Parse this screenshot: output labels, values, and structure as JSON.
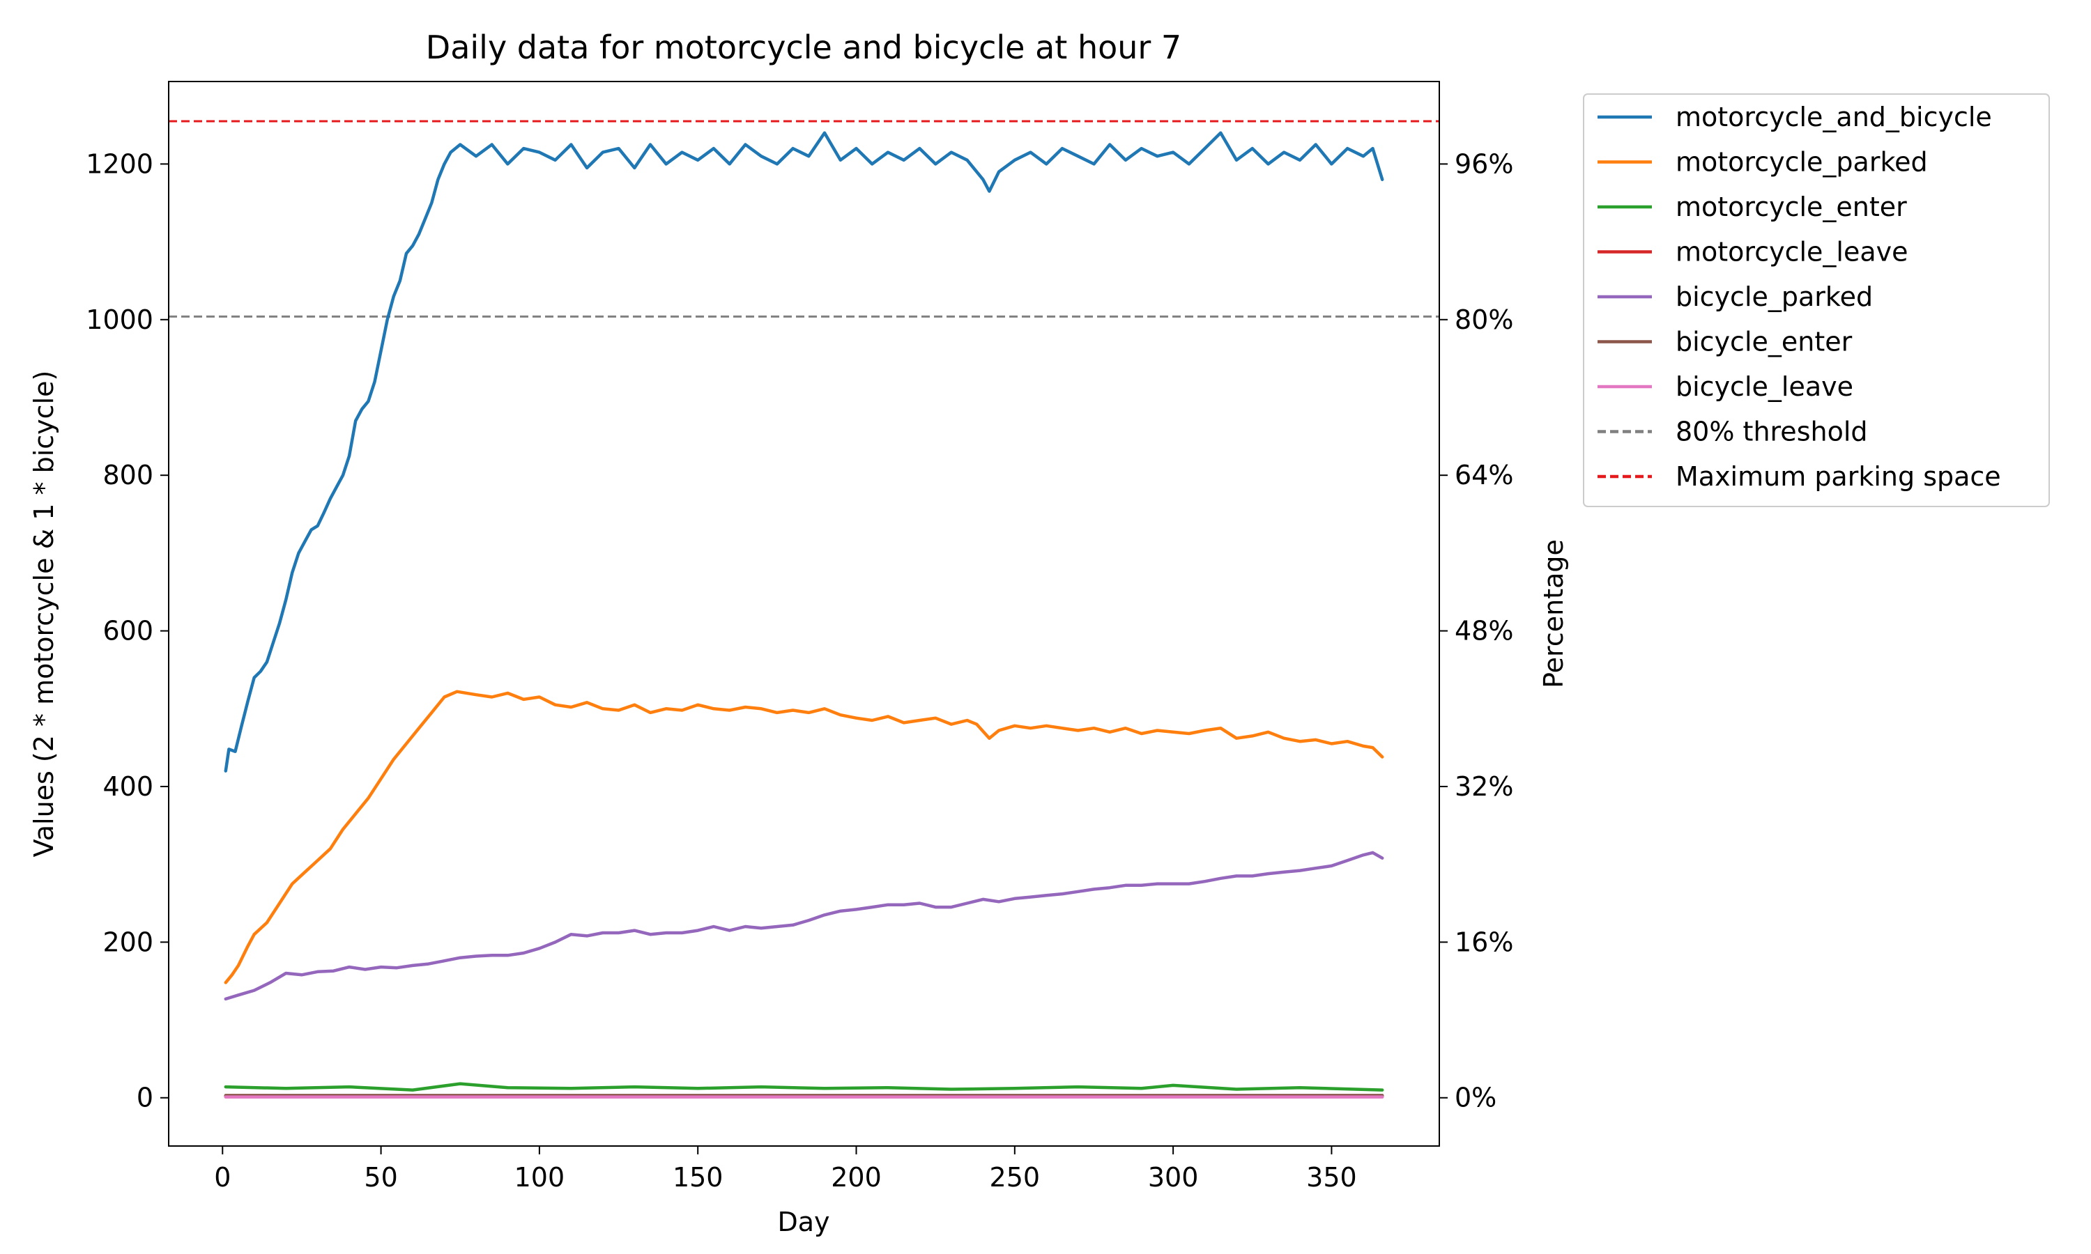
{
  "chart_data": {
    "type": "line",
    "title": "Daily data for motorcycle and bicycle at hour 7",
    "xlabel": "Day",
    "ylabel": "Values (2 * motorcycle & 1 * bicycle)",
    "y2label": "Percentage",
    "xlim": [
      -17,
      384
    ],
    "ylim": [
      -62,
      1306
    ],
    "xticks": [
      0,
      50,
      100,
      150,
      200,
      250,
      300,
      350
    ],
    "yticks": [
      0,
      200,
      400,
      600,
      800,
      1000,
      1200
    ],
    "y2ticks": [
      {
        "value": 0,
        "label": "0%"
      },
      {
        "value": 200,
        "label": "16%"
      },
      {
        "value": 400,
        "label": "32%"
      },
      {
        "value": 600,
        "label": "48%"
      },
      {
        "value": 800,
        "label": "64%"
      },
      {
        "value": 1000,
        "label": "80%"
      },
      {
        "value": 1200,
        "label": "96%"
      }
    ],
    "grid": false,
    "legend_position": "outside-right-top",
    "reference_lines": [
      {
        "name": "80% threshold",
        "value": 1004,
        "color": "#808080",
        "style": "dashed"
      },
      {
        "name": "Maximum parking space",
        "value": 1255,
        "color": "#e41a1c",
        "style": "dashed"
      }
    ],
    "series": [
      {
        "name": "motorcycle_and_bicycle",
        "color": "#1f77b4",
        "points": [
          [
            1,
            420
          ],
          [
            2,
            448
          ],
          [
            4,
            445
          ],
          [
            6,
            478
          ],
          [
            8,
            510
          ],
          [
            10,
            540
          ],
          [
            12,
            548
          ],
          [
            14,
            560
          ],
          [
            16,
            585
          ],
          [
            18,
            610
          ],
          [
            20,
            640
          ],
          [
            22,
            675
          ],
          [
            24,
            700
          ],
          [
            26,
            715
          ],
          [
            28,
            730
          ],
          [
            30,
            735
          ],
          [
            32,
            752
          ],
          [
            34,
            770
          ],
          [
            36,
            785
          ],
          [
            38,
            800
          ],
          [
            40,
            825
          ],
          [
            42,
            870
          ],
          [
            44,
            885
          ],
          [
            46,
            895
          ],
          [
            48,
            920
          ],
          [
            50,
            960
          ],
          [
            52,
            1000
          ],
          [
            54,
            1030
          ],
          [
            56,
            1050
          ],
          [
            58,
            1085
          ],
          [
            60,
            1095
          ],
          [
            62,
            1110
          ],
          [
            64,
            1130
          ],
          [
            66,
            1150
          ],
          [
            68,
            1180
          ],
          [
            70,
            1200
          ],
          [
            72,
            1215
          ],
          [
            75,
            1225
          ],
          [
            80,
            1210
          ],
          [
            85,
            1225
          ],
          [
            90,
            1200
          ],
          [
            95,
            1220
          ],
          [
            100,
            1215
          ],
          [
            105,
            1205
          ],
          [
            110,
            1225
          ],
          [
            115,
            1195
          ],
          [
            120,
            1215
          ],
          [
            125,
            1220
          ],
          [
            130,
            1195
          ],
          [
            135,
            1225
          ],
          [
            140,
            1200
          ],
          [
            145,
            1215
          ],
          [
            150,
            1205
          ],
          [
            155,
            1220
          ],
          [
            160,
            1200
          ],
          [
            165,
            1225
          ],
          [
            170,
            1210
          ],
          [
            175,
            1200
          ],
          [
            180,
            1220
          ],
          [
            185,
            1210
          ],
          [
            190,
            1240
          ],
          [
            195,
            1205
          ],
          [
            200,
            1220
          ],
          [
            205,
            1200
          ],
          [
            210,
            1215
          ],
          [
            215,
            1205
          ],
          [
            220,
            1220
          ],
          [
            225,
            1200
          ],
          [
            230,
            1215
          ],
          [
            235,
            1205
          ],
          [
            240,
            1180
          ],
          [
            242,
            1165
          ],
          [
            245,
            1190
          ],
          [
            250,
            1205
          ],
          [
            255,
            1215
          ],
          [
            260,
            1200
          ],
          [
            265,
            1220
          ],
          [
            270,
            1210
          ],
          [
            275,
            1200
          ],
          [
            280,
            1225
          ],
          [
            285,
            1205
          ],
          [
            290,
            1220
          ],
          [
            295,
            1210
          ],
          [
            300,
            1215
          ],
          [
            305,
            1200
          ],
          [
            310,
            1220
          ],
          [
            315,
            1240
          ],
          [
            320,
            1205
          ],
          [
            325,
            1220
          ],
          [
            330,
            1200
          ],
          [
            335,
            1215
          ],
          [
            340,
            1205
          ],
          [
            345,
            1225
          ],
          [
            350,
            1200
          ],
          [
            355,
            1220
          ],
          [
            360,
            1210
          ],
          [
            363,
            1220
          ],
          [
            366,
            1180
          ]
        ]
      },
      {
        "name": "motorcycle_parked",
        "color": "#ff7f0e",
        "points": [
          [
            1,
            148
          ],
          [
            3,
            158
          ],
          [
            5,
            170
          ],
          [
            8,
            195
          ],
          [
            10,
            210
          ],
          [
            14,
            225
          ],
          [
            18,
            250
          ],
          [
            22,
            275
          ],
          [
            26,
            290
          ],
          [
            30,
            305
          ],
          [
            34,
            320
          ],
          [
            38,
            345
          ],
          [
            42,
            365
          ],
          [
            46,
            385
          ],
          [
            50,
            410
          ],
          [
            54,
            435
          ],
          [
            58,
            455
          ],
          [
            62,
            475
          ],
          [
            66,
            495
          ],
          [
            70,
            515
          ],
          [
            74,
            522
          ],
          [
            80,
            518
          ],
          [
            85,
            515
          ],
          [
            90,
            520
          ],
          [
            95,
            512
          ],
          [
            100,
            515
          ],
          [
            105,
            505
          ],
          [
            110,
            502
          ],
          [
            115,
            508
          ],
          [
            120,
            500
          ],
          [
            125,
            498
          ],
          [
            130,
            505
          ],
          [
            135,
            495
          ],
          [
            140,
            500
          ],
          [
            145,
            498
          ],
          [
            150,
            505
          ],
          [
            155,
            500
          ],
          [
            160,
            498
          ],
          [
            165,
            502
          ],
          [
            170,
            500
          ],
          [
            175,
            495
          ],
          [
            180,
            498
          ],
          [
            185,
            495
          ],
          [
            190,
            500
          ],
          [
            195,
            492
          ],
          [
            200,
            488
          ],
          [
            205,
            485
          ],
          [
            210,
            490
          ],
          [
            215,
            482
          ],
          [
            220,
            485
          ],
          [
            225,
            488
          ],
          [
            230,
            480
          ],
          [
            235,
            485
          ],
          [
            238,
            480
          ],
          [
            242,
            462
          ],
          [
            245,
            472
          ],
          [
            250,
            478
          ],
          [
            255,
            475
          ],
          [
            260,
            478
          ],
          [
            265,
            475
          ],
          [
            270,
            472
          ],
          [
            275,
            475
          ],
          [
            280,
            470
          ],
          [
            285,
            475
          ],
          [
            290,
            468
          ],
          [
            295,
            472
          ],
          [
            300,
            470
          ],
          [
            305,
            468
          ],
          [
            310,
            472
          ],
          [
            315,
            475
          ],
          [
            320,
            462
          ],
          [
            325,
            465
          ],
          [
            330,
            470
          ],
          [
            335,
            462
          ],
          [
            340,
            458
          ],
          [
            345,
            460
          ],
          [
            350,
            455
          ],
          [
            355,
            458
          ],
          [
            360,
            452
          ],
          [
            363,
            450
          ],
          [
            366,
            438
          ]
        ]
      },
      {
        "name": "motorcycle_enter",
        "color": "#2ca02c",
        "points": [
          [
            1,
            14
          ],
          [
            20,
            12
          ],
          [
            40,
            14
          ],
          [
            60,
            10
          ],
          [
            75,
            18
          ],
          [
            90,
            13
          ],
          [
            110,
            12
          ],
          [
            130,
            14
          ],
          [
            150,
            12
          ],
          [
            170,
            14
          ],
          [
            190,
            12
          ],
          [
            210,
            13
          ],
          [
            230,
            11
          ],
          [
            250,
            12
          ],
          [
            270,
            14
          ],
          [
            290,
            12
          ],
          [
            300,
            16
          ],
          [
            320,
            11
          ],
          [
            340,
            13
          ],
          [
            366,
            10
          ]
        ]
      },
      {
        "name": "motorcycle_leave",
        "color": "#d62728",
        "points": [
          [
            1,
            2
          ],
          [
            366,
            2
          ]
        ]
      },
      {
        "name": "bicycle_parked",
        "color": "#9467bd",
        "points": [
          [
            1,
            127
          ],
          [
            5,
            132
          ],
          [
            10,
            138
          ],
          [
            15,
            148
          ],
          [
            20,
            160
          ],
          [
            25,
            158
          ],
          [
            30,
            162
          ],
          [
            35,
            163
          ],
          [
            40,
            168
          ],
          [
            45,
            165
          ],
          [
            50,
            168
          ],
          [
            55,
            167
          ],
          [
            60,
            170
          ],
          [
            65,
            172
          ],
          [
            70,
            176
          ],
          [
            75,
            180
          ],
          [
            80,
            182
          ],
          [
            85,
            183
          ],
          [
            90,
            183
          ],
          [
            95,
            186
          ],
          [
            100,
            192
          ],
          [
            105,
            200
          ],
          [
            110,
            210
          ],
          [
            115,
            208
          ],
          [
            120,
            212
          ],
          [
            125,
            212
          ],
          [
            130,
            215
          ],
          [
            135,
            210
          ],
          [
            140,
            212
          ],
          [
            145,
            212
          ],
          [
            150,
            215
          ],
          [
            155,
            220
          ],
          [
            160,
            215
          ],
          [
            165,
            220
          ],
          [
            170,
            218
          ],
          [
            175,
            220
          ],
          [
            180,
            222
          ],
          [
            185,
            228
          ],
          [
            190,
            235
          ],
          [
            195,
            240
          ],
          [
            200,
            242
          ],
          [
            205,
            245
          ],
          [
            210,
            248
          ],
          [
            215,
            248
          ],
          [
            220,
            250
          ],
          [
            225,
            245
          ],
          [
            230,
            245
          ],
          [
            235,
            250
          ],
          [
            240,
            255
          ],
          [
            245,
            252
          ],
          [
            250,
            256
          ],
          [
            255,
            258
          ],
          [
            260,
            260
          ],
          [
            265,
            262
          ],
          [
            270,
            265
          ],
          [
            275,
            268
          ],
          [
            280,
            270
          ],
          [
            285,
            273
          ],
          [
            290,
            273
          ],
          [
            295,
            275
          ],
          [
            300,
            275
          ],
          [
            305,
            275
          ],
          [
            310,
            278
          ],
          [
            315,
            282
          ],
          [
            320,
            285
          ],
          [
            325,
            285
          ],
          [
            330,
            288
          ],
          [
            335,
            290
          ],
          [
            340,
            292
          ],
          [
            345,
            295
          ],
          [
            350,
            298
          ],
          [
            355,
            305
          ],
          [
            360,
            312
          ],
          [
            363,
            315
          ],
          [
            366,
            308
          ]
        ]
      },
      {
        "name": "bicycle_enter",
        "color": "#8c564b",
        "points": [
          [
            1,
            3
          ],
          [
            366,
            3
          ]
        ]
      },
      {
        "name": "bicycle_leave",
        "color": "#e377c2",
        "points": [
          [
            1,
            1
          ],
          [
            366,
            1
          ]
        ]
      }
    ],
    "legend": [
      {
        "label": "motorcycle_and_bicycle",
        "color": "#1f77b4",
        "style": "solid"
      },
      {
        "label": "motorcycle_parked",
        "color": "#ff7f0e",
        "style": "solid"
      },
      {
        "label": "motorcycle_enter",
        "color": "#2ca02c",
        "style": "solid"
      },
      {
        "label": "motorcycle_leave",
        "color": "#d62728",
        "style": "solid"
      },
      {
        "label": "bicycle_parked",
        "color": "#9467bd",
        "style": "solid"
      },
      {
        "label": "bicycle_enter",
        "color": "#8c564b",
        "style": "solid"
      },
      {
        "label": "bicycle_leave",
        "color": "#e377c2",
        "style": "solid"
      },
      {
        "label": "80% threshold",
        "color": "#808080",
        "style": "dashed"
      },
      {
        "label": "Maximum parking space",
        "color": "#e41a1c",
        "style": "dashed"
      }
    ]
  }
}
